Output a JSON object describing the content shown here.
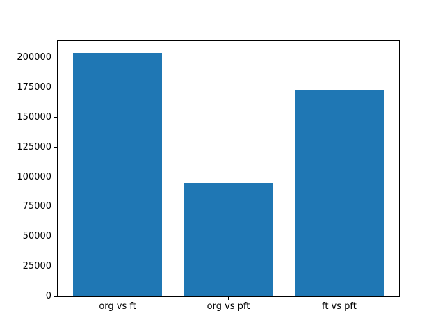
{
  "figure": {
    "background": "#ffffff",
    "plot_background": "#ffffff",
    "frame_color": "#000000",
    "text_color": "#000000"
  },
  "chart_data": {
    "type": "bar",
    "title": "",
    "xlabel": "",
    "ylabel": "",
    "categories": [
      "org vs ft",
      "org vs pft",
      "ft vs pft"
    ],
    "values": [
      204000,
      95000,
      173000
    ],
    "bar_color": "#1f77b4",
    "bar_width_fraction": 0.8,
    "ylim": [
      0,
      214200
    ],
    "yticks": [
      0,
      25000,
      50000,
      75000,
      100000,
      125000,
      150000,
      175000,
      200000
    ],
    "ytick_labels": [
      "0",
      "25000",
      "50000",
      "75000",
      "100000",
      "125000",
      "150000",
      "175000",
      "200000"
    ],
    "grid": false,
    "legend": "none"
  }
}
